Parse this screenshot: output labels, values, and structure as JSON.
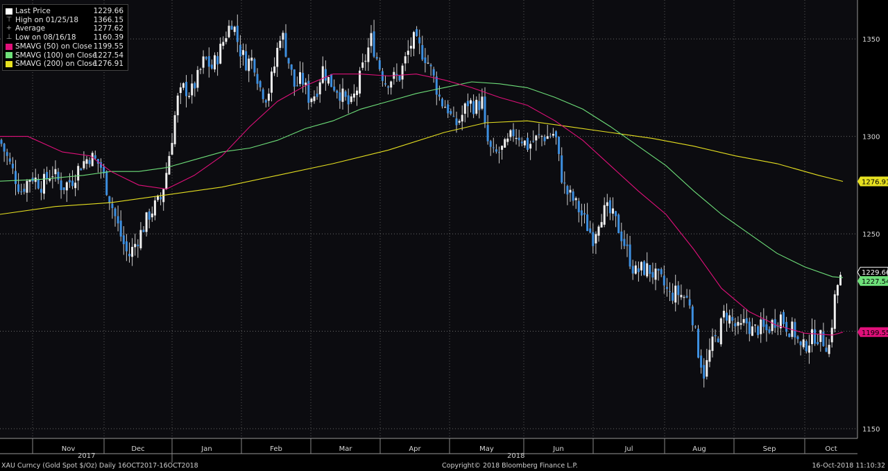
{
  "legend": [
    {
      "label": "Last Price",
      "value": "1229.66",
      "color": "#ffffff",
      "icon": "filled-square"
    },
    {
      "label": "High on 01/25/18",
      "value": "1366.15",
      "color": "#aaaaaa",
      "icon": "high-tick-glyph"
    },
    {
      "label": "Average",
      "value": "1277.62",
      "color": "#aaaaaa",
      "icon": "average-cross-glyph"
    },
    {
      "label": "Low on 08/16/18",
      "value": "1160.39",
      "color": "#aaaaaa",
      "icon": "low-tick-glyph"
    },
    {
      "label": "SMAVG (50)  on Close",
      "value": "1199.55",
      "color": "#e0107a",
      "icon": "filled-square"
    },
    {
      "label": "SMAVG (100)  on Close",
      "value": "1227.54",
      "color": "#6ee07a",
      "icon": "filled-square"
    },
    {
      "label": "SMAVG (200)  on Close",
      "value": "1276.91",
      "color": "#e6e020",
      "icon": "filled-square"
    }
  ],
  "footer": {
    "left": "XAU Curncy (Gold Spot  $/Oz)  Daily 16OCT2017-16OCT2018",
    "center": "Copyright© 2018 Bloomberg Finance L.P.",
    "right": "16-Oct-2018 11:10:32"
  },
  "years": [
    "2017",
    "2018"
  ],
  "chart_data": {
    "type": "candlestick",
    "ylim": [
      1145,
      1370
    ],
    "yticks": [
      1150,
      1200,
      1250,
      1300,
      1350
    ],
    "x_months": [
      "Nov",
      "Dec",
      "Jan",
      "Feb",
      "Mar",
      "Apr",
      "May",
      "Jun",
      "Jul",
      "Aug",
      "Sep",
      "Oct"
    ],
    "price_tags": [
      {
        "value": 1276.91,
        "label": "1276.91",
        "color": "#e6e020"
      },
      {
        "value": 1229.66,
        "label": "1229.66",
        "color": "#ffffff"
      },
      {
        "value": 1227.54,
        "label": "1227.54",
        "color": "#6ee07a"
      },
      {
        "value": 1199.55,
        "label": "1199.55",
        "color": "#e0107a"
      }
    ],
    "close_series": [
      [
        0,
        1298
      ],
      [
        15,
        1285
      ],
      [
        30,
        1272
      ],
      [
        45,
        1280
      ],
      [
        60,
        1275
      ],
      [
        75,
        1282
      ],
      [
        90,
        1274
      ],
      [
        105,
        1278
      ],
      [
        115,
        1285
      ],
      [
        130,
        1290
      ],
      [
        145,
        1285
      ],
      [
        155,
        1272
      ],
      [
        165,
        1260
      ],
      [
        175,
        1248
      ],
      [
        185,
        1238
      ],
      [
        195,
        1245
      ],
      [
        205,
        1252
      ],
      [
        215,
        1260
      ],
      [
        225,
        1265
      ],
      [
        232,
        1268
      ],
      [
        240,
        1282
      ],
      [
        248,
        1300
      ],
      [
        255,
        1318
      ],
      [
        265,
        1325
      ],
      [
        275,
        1322
      ],
      [
        285,
        1330
      ],
      [
        295,
        1340
      ],
      [
        305,
        1335
      ],
      [
        315,
        1342
      ],
      [
        325,
        1352
      ],
      [
        335,
        1360
      ],
      [
        345,
        1345
      ],
      [
        355,
        1338
      ],
      [
        365,
        1340
      ],
      [
        375,
        1325
      ],
      [
        385,
        1320
      ],
      [
        395,
        1335
      ],
      [
        405,
        1355
      ],
      [
        415,
        1340
      ],
      [
        425,
        1325
      ],
      [
        435,
        1330
      ],
      [
        445,
        1320
      ],
      [
        455,
        1322
      ],
      [
        465,
        1335
      ],
      [
        475,
        1328
      ],
      [
        485,
        1325
      ],
      [
        495,
        1320
      ],
      [
        505,
        1315
      ],
      [
        515,
        1325
      ],
      [
        525,
        1338
      ],
      [
        535,
        1350
      ],
      [
        545,
        1338
      ],
      [
        555,
        1328
      ],
      [
        565,
        1330
      ],
      [
        575,
        1330
      ],
      [
        585,
        1340
      ],
      [
        595,
        1350
      ],
      [
        605,
        1345
      ],
      [
        615,
        1340
      ],
      [
        625,
        1330
      ],
      [
        635,
        1318
      ],
      [
        645,
        1315
      ],
      [
        655,
        1305
      ],
      [
        665,
        1310
      ],
      [
        675,
        1318
      ],
      [
        685,
        1315
      ],
      [
        695,
        1318
      ],
      [
        700,
        1300
      ],
      [
        710,
        1290
      ],
      [
        720,
        1292
      ],
      [
        730,
        1295
      ],
      [
        740,
        1302
      ],
      [
        750,
        1300
      ],
      [
        760,
        1295
      ],
      [
        770,
        1298
      ],
      [
        780,
        1300
      ],
      [
        790,
        1300
      ],
      [
        800,
        1302
      ],
      [
        808,
        1282
      ],
      [
        815,
        1272
      ],
      [
        825,
        1268
      ],
      [
        835,
        1262
      ],
      [
        845,
        1255
      ],
      [
        855,
        1248
      ],
      [
        865,
        1260
      ],
      [
        875,
        1262
      ],
      [
        885,
        1258
      ],
      [
        895,
        1250
      ],
      [
        905,
        1240
      ],
      [
        915,
        1230
      ],
      [
        925,
        1232
      ],
      [
        935,
        1232
      ],
      [
        945,
        1228
      ],
      [
        955,
        1225
      ],
      [
        965,
        1218
      ],
      [
        975,
        1220
      ],
      [
        985,
        1218
      ],
      [
        995,
        1215
      ],
      [
        1005,
        1192
      ],
      [
        1015,
        1178
      ],
      [
        1025,
        1192
      ],
      [
        1035,
        1198
      ],
      [
        1045,
        1210
      ],
      [
        1055,
        1205
      ],
      [
        1065,
        1200
      ],
      [
        1075,
        1205
      ],
      [
        1085,
        1200
      ],
      [
        1095,
        1202
      ],
      [
        1105,
        1200
      ],
      [
        1115,
        1205
      ],
      [
        1125,
        1208
      ],
      [
        1135,
        1202
      ],
      [
        1145,
        1200
      ],
      [
        1155,
        1190
      ],
      [
        1165,
        1195
      ],
      [
        1175,
        1198
      ],
      [
        1185,
        1196
      ],
      [
        1195,
        1192
      ],
      [
        1205,
        1222
      ],
      [
        1215,
        1229.66
      ]
    ],
    "ma50": [
      [
        0,
        1300
      ],
      [
        40,
        1300
      ],
      [
        90,
        1292
      ],
      [
        130,
        1290
      ],
      [
        160,
        1282
      ],
      [
        200,
        1275
      ],
      [
        240,
        1273
      ],
      [
        280,
        1280
      ],
      [
        320,
        1290
      ],
      [
        360,
        1305
      ],
      [
        400,
        1318
      ],
      [
        440,
        1326
      ],
      [
        480,
        1332
      ],
      [
        520,
        1332
      ],
      [
        560,
        1331
      ],
      [
        600,
        1332
      ],
      [
        640,
        1329
      ],
      [
        680,
        1325
      ],
      [
        720,
        1320
      ],
      [
        760,
        1316
      ],
      [
        800,
        1308
      ],
      [
        840,
        1298
      ],
      [
        880,
        1285
      ],
      [
        920,
        1272
      ],
      [
        960,
        1260
      ],
      [
        1000,
        1242
      ],
      [
        1040,
        1222
      ],
      [
        1080,
        1210
      ],
      [
        1120,
        1203
      ],
      [
        1160,
        1199
      ],
      [
        1200,
        1198
      ],
      [
        1215,
        1199.55
      ]
    ],
    "ma100": [
      [
        0,
        1277
      ],
      [
        60,
        1278
      ],
      [
        120,
        1280
      ],
      [
        160,
        1282
      ],
      [
        200,
        1282
      ],
      [
        240,
        1284
      ],
      [
        280,
        1288
      ],
      [
        320,
        1292
      ],
      [
        360,
        1294
      ],
      [
        400,
        1298
      ],
      [
        440,
        1304
      ],
      [
        480,
        1308
      ],
      [
        520,
        1314
      ],
      [
        560,
        1318
      ],
      [
        600,
        1322
      ],
      [
        640,
        1325
      ],
      [
        680,
        1328
      ],
      [
        720,
        1327
      ],
      [
        760,
        1325
      ],
      [
        800,
        1320
      ],
      [
        840,
        1314
      ],
      [
        880,
        1305
      ],
      [
        920,
        1295
      ],
      [
        960,
        1285
      ],
      [
        1000,
        1272
      ],
      [
        1040,
        1260
      ],
      [
        1080,
        1250
      ],
      [
        1120,
        1240
      ],
      [
        1160,
        1233
      ],
      [
        1200,
        1228
      ],
      [
        1215,
        1227.54
      ]
    ],
    "ma200": [
      [
        0,
        1260
      ],
      [
        80,
        1264
      ],
      [
        160,
        1266
      ],
      [
        240,
        1270
      ],
      [
        320,
        1274
      ],
      [
        400,
        1280
      ],
      [
        480,
        1286
      ],
      [
        560,
        1293
      ],
      [
        640,
        1302
      ],
      [
        700,
        1307
      ],
      [
        760,
        1308
      ],
      [
        820,
        1305
      ],
      [
        880,
        1302
      ],
      [
        940,
        1299
      ],
      [
        1000,
        1295
      ],
      [
        1060,
        1290
      ],
      [
        1120,
        1286
      ],
      [
        1180,
        1280
      ],
      [
        1215,
        1276.91
      ]
    ]
  }
}
